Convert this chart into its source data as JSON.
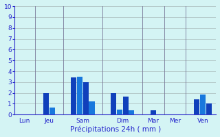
{
  "title": "",
  "xlabel": "Précipitations 24h ( mm )",
  "ylim": [
    0,
    10
  ],
  "yticks": [
    0,
    1,
    2,
    3,
    4,
    5,
    6,
    7,
    8,
    9,
    10
  ],
  "background_color": "#d4f4f4",
  "bar_color_dark": "#1040bb",
  "bar_color_light": "#1878dd",
  "grid_color": "#aabbbb",
  "axis_color": "#3333cc",
  "tick_color": "#2222cc",
  "xlabel_color": "#2222cc",
  "groups": [
    {
      "label": "Lun",
      "bars": []
    },
    {
      "label": "Jeu",
      "bars": [
        2.0,
        0.65
      ]
    },
    {
      "label": "Sam",
      "bars": [
        3.45,
        3.5,
        3.0,
        1.25
      ]
    },
    {
      "label": "Dim",
      "bars": [
        2.0,
        0.45,
        1.65,
        0.4
      ]
    },
    {
      "label": "Mar",
      "bars": [
        0.4
      ]
    },
    {
      "label": "Mer",
      "bars": []
    },
    {
      "label": "Ven",
      "bars": [
        1.4,
        1.85,
        1.0
      ]
    }
  ],
  "tick_label_fontsize": 6.5,
  "xlabel_fontsize": 7.5
}
